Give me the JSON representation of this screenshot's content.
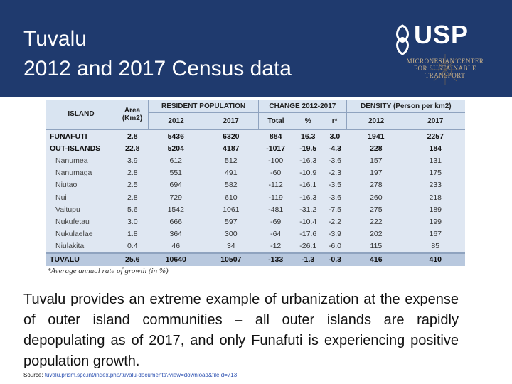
{
  "slide": {
    "title_line1": "Tuvalu",
    "title_line2": "2012 and 2017 Census data"
  },
  "logo": {
    "brand": "USP",
    "center_line1": "MICRONESIAN CENTER",
    "center_line2": "FOR SUSTAINABLE",
    "center_line3": "TRANSPORT"
  },
  "table": {
    "group_headers": {
      "island": "ISLAND",
      "area": "Area (Km2)",
      "resident": "RESIDENT POPULATION",
      "change": "CHANGE 2012-2017",
      "density": "DENSITY (Person per km2)"
    },
    "sub_headers": [
      "2012",
      "2017",
      "Total",
      "%",
      "r*",
      "2012",
      "2017"
    ],
    "rows": [
      {
        "island": "FUNAFUTI",
        "area": "2.8",
        "pop2012": "5436",
        "pop2017": "6320",
        "total": "884",
        "pct": "16.3",
        "r": "3.0",
        "d2012": "1941",
        "d2017": "2257",
        "bold": true
      },
      {
        "island": "OUT-ISLANDS",
        "area": "22.8",
        "pop2012": "5204",
        "pop2017": "4187",
        "total": "-1017",
        "pct": "-19.5",
        "r": "-4.3",
        "d2012": "228",
        "d2017": "184",
        "bold": true
      },
      {
        "island": "Nanumea",
        "area": "3.9",
        "pop2012": "612",
        "pop2017": "512",
        "total": "-100",
        "pct": "-16.3",
        "r": "-3.6",
        "d2012": "157",
        "d2017": "131"
      },
      {
        "island": "Nanumaga",
        "area": "2.8",
        "pop2012": "551",
        "pop2017": "491",
        "total": "-60",
        "pct": "-10.9",
        "r": "-2.3",
        "d2012": "197",
        "d2017": "175"
      },
      {
        "island": "Niutao",
        "area": "2.5",
        "pop2012": "694",
        "pop2017": "582",
        "total": "-112",
        "pct": "-16.1",
        "r": "-3.5",
        "d2012": "278",
        "d2017": "233"
      },
      {
        "island": "Nui",
        "area": "2.8",
        "pop2012": "729",
        "pop2017": "610",
        "total": "-119",
        "pct": "-16.3",
        "r": "-3.6",
        "d2012": "260",
        "d2017": "218"
      },
      {
        "island": "Vaitupu",
        "area": "5.6",
        "pop2012": "1542",
        "pop2017": "1061",
        "total": "-481",
        "pct": "-31.2",
        "r": "-7.5",
        "d2012": "275",
        "d2017": "189"
      },
      {
        "island": "Nukufetau",
        "area": "3.0",
        "pop2012": "666",
        "pop2017": "597",
        "total": "-69",
        "pct": "-10.4",
        "r": "-2.2",
        "d2012": "222",
        "d2017": "199"
      },
      {
        "island": "Nukulaelae",
        "area": "1.8",
        "pop2012": "364",
        "pop2017": "300",
        "total": "-64",
        "pct": "-17.6",
        "r": "-3.9",
        "d2012": "202",
        "d2017": "167"
      },
      {
        "island": "Niulakita",
        "area": "0.4",
        "pop2012": "46",
        "pop2017": "34",
        "total": "-12",
        "pct": "-26.1",
        "r": "-6.0",
        "d2012": "115",
        "d2017": "85"
      }
    ],
    "total_row": {
      "island": "TUVALU",
      "area": "25.6",
      "pop2012": "10640",
      "pop2017": "10507",
      "total": "-133",
      "pct": "-1.3",
      "r": "-0.3",
      "d2012": "416",
      "d2017": "410"
    },
    "footnote": "*Average annual rate of growth (in %)"
  },
  "body": {
    "description": "Tuvalu provides an extreme example of urbanization at the expense of outer island communities – all outer islands are rapidly depopulating as of 2017, and only Funafuti is experiencing positive population growth.",
    "source_label": "Source:",
    "source_link": "tuvalu.prism.spc.int/index.php/tuvalu-documents?view=download&fileId=713"
  },
  "colors": {
    "header_bg": "#1f3a6e",
    "table_header_bg": "#d9e4f1",
    "table_body_bg": "#dfe7f2",
    "table_total_bg": "#b8c8de",
    "link": "#2a4fb0"
  }
}
